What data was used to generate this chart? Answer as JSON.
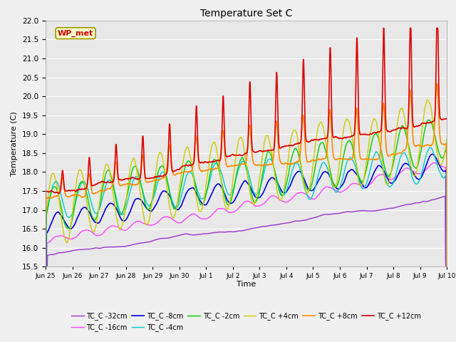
{
  "title": "Temperature Set C",
  "xlabel": "Time",
  "ylabel": "Temperature (C)",
  "ylim": [
    15.5,
    22.0
  ],
  "fig_bg": "#f0f0f0",
  "plot_bg": "#e8e8e8",
  "series": {
    "TC_C -32cm": {
      "color": "#9933cc",
      "lw": 1.0
    },
    "TC_C -16cm": {
      "color": "#ff44ff",
      "lw": 1.0
    },
    "TC_C -8cm": {
      "color": "#0000dd",
      "lw": 1.2
    },
    "TC_C -4cm": {
      "color": "#00cccc",
      "lw": 1.0
    },
    "TC_C -2cm": {
      "color": "#00cc00",
      "lw": 1.0
    },
    "TC_C +4cm": {
      "color": "#cccc00",
      "lw": 1.0
    },
    "TC_C +8cm": {
      "color": "#ff8800",
      "lw": 1.2
    },
    "TC_C +12cm": {
      "color": "#dd0000",
      "lw": 1.2
    }
  },
  "x_tick_labels": [
    "Jun 25",
    "Jun 26",
    "Jun 27",
    "Jun 28",
    "Jun 29",
    "Jun 30",
    "Jul 1",
    "Jul 2",
    "Jul 3",
    "Jul 4",
    "Jul 5",
    "Jul 6",
    "Jul 7",
    "Jul 8",
    "Jul 9",
    "Jul 10"
  ],
  "n_days": 15,
  "annotation_label": "WP_met",
  "annotation_color": "#cc0000",
  "annotation_bg": "#ffffcc"
}
